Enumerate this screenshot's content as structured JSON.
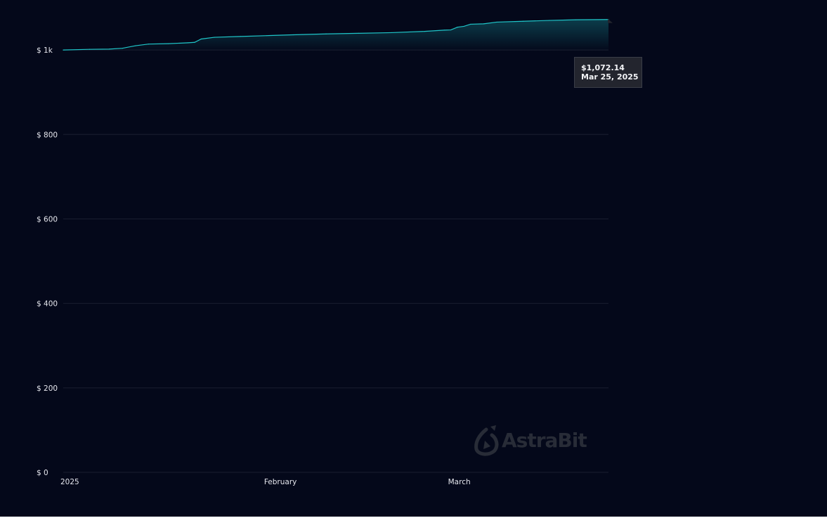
{
  "chart_data": {
    "type": "area",
    "x_start": "2025-01-01",
    "x_end": "2025-03-25",
    "x_ticks": [
      {
        "date": "2025-01-01",
        "label": "2025"
      },
      {
        "date": "2025-02-01",
        "label": "February"
      },
      {
        "date": "2025-03-01",
        "label": "March"
      }
    ],
    "y_ticks": [
      {
        "value": 0,
        "label": "$ 0"
      },
      {
        "value": 200,
        "label": "$ 200"
      },
      {
        "value": 400,
        "label": "$ 400"
      },
      {
        "value": 600,
        "label": "$ 600"
      },
      {
        "value": 800,
        "label": "$ 800"
      },
      {
        "value": 1000,
        "label": "$ 1k"
      }
    ],
    "ylim": [
      0,
      1110
    ],
    "grid": true,
    "series": [
      {
        "color": "#1fc5c8",
        "points": [
          [
            "2025-01-01",
            1000.0
          ],
          [
            "2025-01-05",
            1001.5
          ],
          [
            "2025-01-08",
            1002.0
          ],
          [
            "2025-01-10",
            1004.0
          ],
          [
            "2025-01-12",
            1010.0
          ],
          [
            "2025-01-14",
            1014.0
          ],
          [
            "2025-01-17",
            1015.0
          ],
          [
            "2025-01-20",
            1017.0
          ],
          [
            "2025-01-21",
            1018.0
          ],
          [
            "2025-01-22",
            1026.0
          ],
          [
            "2025-01-24",
            1030.0
          ],
          [
            "2025-01-28",
            1032.0
          ],
          [
            "2025-02-01",
            1034.0
          ],
          [
            "2025-02-05",
            1036.0
          ],
          [
            "2025-02-10",
            1038.0
          ],
          [
            "2025-02-15",
            1039.5
          ],
          [
            "2025-02-20",
            1041.0
          ],
          [
            "2025-02-25",
            1044.0
          ],
          [
            "2025-02-28",
            1047.0
          ],
          [
            "2025-03-01",
            1047.5
          ],
          [
            "2025-03-02",
            1054.0
          ],
          [
            "2025-03-03",
            1056.0
          ],
          [
            "2025-03-04",
            1061.0
          ],
          [
            "2025-03-06",
            1062.0
          ],
          [
            "2025-03-08",
            1066.0
          ],
          [
            "2025-03-12",
            1068.0
          ],
          [
            "2025-03-16",
            1070.0
          ],
          [
            "2025-03-20",
            1071.5
          ],
          [
            "2025-03-25",
            1072.14
          ]
        ]
      }
    ]
  },
  "tooltip": {
    "value": "$1,072.14",
    "date": "Mar 25, 2025"
  },
  "watermark": {
    "text": "AstraBit"
  },
  "colors": {
    "background": "#04081a",
    "line": "#1fc5c8",
    "grid": "#1a1e30",
    "tooltip_bg": "#23252e"
  }
}
